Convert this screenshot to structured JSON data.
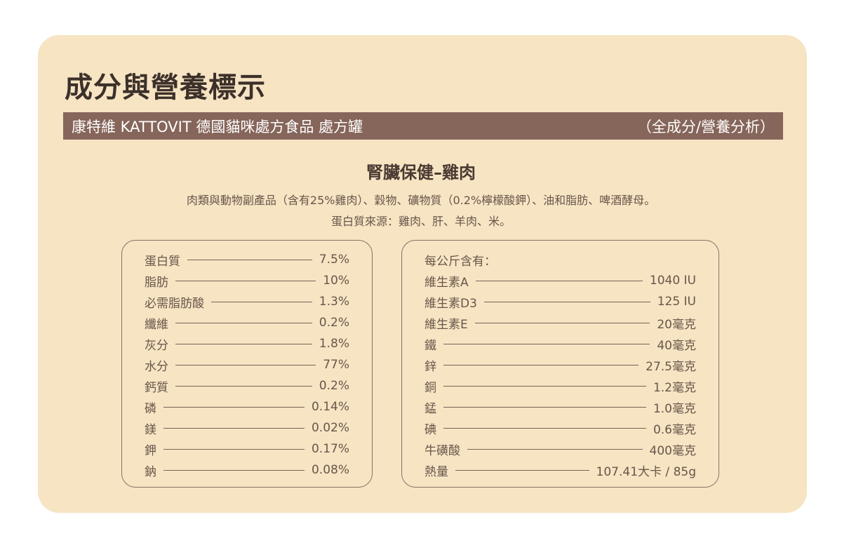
{
  "title": "成分與營養標示",
  "bar": {
    "product": "康特維 KATTOVIT 德國貓咪處方食品 處方罐",
    "note": "（全成分/營養分析）"
  },
  "subtitle": "腎臟保健–雞肉",
  "ingredients": "肉類與動物副產品（含有25%雞肉）、穀物、礦物質（0.2%檸檬酸鉀）、油和脂肪、啤酒酵母。",
  "protein_source": "蛋白質來源：雞肉、肝、羊肉、米。",
  "analysis": [
    {
      "label": "蛋白質",
      "value": "7.5%"
    },
    {
      "label": "脂肪",
      "value": "10%"
    },
    {
      "label": "必需脂肪酸",
      "value": "1.3%"
    },
    {
      "label": "纖維",
      "value": "0.2%"
    },
    {
      "label": "灰分",
      "value": "1.8%"
    },
    {
      "label": "水分",
      "value": "77%"
    },
    {
      "label": "鈣質",
      "value": "0.2%"
    },
    {
      "label": "磷",
      "value": "0.14%"
    },
    {
      "label": "鎂",
      "value": "0.02%"
    },
    {
      "label": "鉀",
      "value": "0.17%"
    },
    {
      "label": "鈉",
      "value": "0.08%"
    }
  ],
  "per_kg": {
    "heading": "每公斤含有：",
    "items": [
      {
        "label": "維生素A",
        "value": "1040 IU"
      },
      {
        "label": "維生素D3",
        "value": "125 IU"
      },
      {
        "label": "維生素E",
        "value": "20毫克"
      },
      {
        "label": "鐵",
        "value": "40毫克"
      },
      {
        "label": "鋅",
        "value": "27.5毫克"
      },
      {
        "label": "銅",
        "value": "1.2毫克"
      },
      {
        "label": "錳",
        "value": "1.0毫克"
      },
      {
        "label": "碘",
        "value": "0.6毫克"
      },
      {
        "label": "牛磺酸",
        "value": "400毫克"
      },
      {
        "label": "熱量",
        "value": "107.41大卡 / 85g"
      }
    ]
  }
}
